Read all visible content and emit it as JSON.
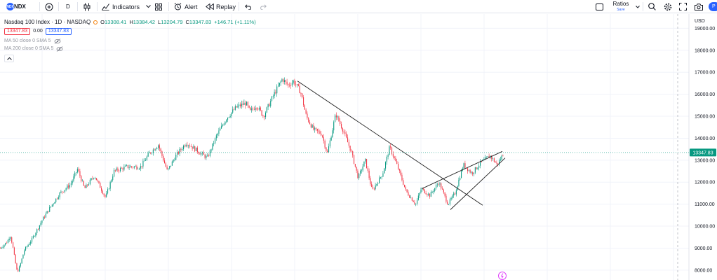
{
  "toolbar": {
    "symbol": "NDX",
    "symbol_logo_text": "NDX",
    "interval": "D",
    "indicators_label": "Indicators",
    "alert_label": "Alert",
    "replay_label": "Replay",
    "ratios_label": "Ratios",
    "ratios_sub": "Save",
    "publish_label": "P"
  },
  "legend": {
    "title": "Nasdaq 100 Index · 1D · NASDAQ",
    "open_label": "O",
    "open": "13308.41",
    "high_label": "H",
    "high": "13384.42",
    "low_label": "L",
    "low": "13204.79",
    "close_label": "C",
    "close": "13347.83",
    "change": "+146.71 (+1.11%)",
    "sell_price": "13347.83",
    "spread": "0.00",
    "buy_price": "13347.83",
    "ma50": "MA 50 close 0 SMA 5",
    "ma200": "MA 200 close 0 SMA 5"
  },
  "colors": {
    "up": "#089981",
    "down": "#f23645",
    "trendline": "#1f1f1f",
    "current_price_tag": "#089981",
    "accent": "#2962ff"
  },
  "chart_data": {
    "type": "candlestick",
    "currency_label": "USD",
    "y_ticks": [
      19000,
      18000,
      17000,
      16000,
      15000,
      14000,
      13000,
      12000,
      11000,
      10000,
      9000,
      8000
    ],
    "ylim": [
      7550,
      19650
    ],
    "current_price": 13347.83,
    "current_price_label": "13347.83",
    "bars": 400,
    "price_path": [
      {
        "bar": 0,
        "price": 9000
      },
      {
        "bar": 10,
        "price": 9300
      },
      {
        "bar": 14,
        "price": 9600
      },
      {
        "bar": 17,
        "price": 9200
      },
      {
        "bar": 21,
        "price": 8400
      },
      {
        "bar": 24,
        "price": 7900
      },
      {
        "bar": 28,
        "price": 8200
      },
      {
        "bar": 34,
        "price": 8900
      },
      {
        "bar": 45,
        "price": 9400
      },
      {
        "bar": 60,
        "price": 10300
      },
      {
        "bar": 72,
        "price": 10900
      },
      {
        "bar": 85,
        "price": 11500
      },
      {
        "bar": 100,
        "price": 11900
      },
      {
        "bar": 110,
        "price": 12600
      },
      {
        "bar": 120,
        "price": 11700
      },
      {
        "bar": 134,
        "price": 12300
      },
      {
        "bar": 150,
        "price": 11300
      },
      {
        "bar": 162,
        "price": 12500
      },
      {
        "bar": 180,
        "price": 12700
      },
      {
        "bar": 200,
        "price": 12700
      },
      {
        "bar": 212,
        "price": 13300
      },
      {
        "bar": 225,
        "price": 13700
      },
      {
        "bar": 238,
        "price": 12500
      },
      {
        "bar": 250,
        "price": 13200
      },
      {
        "bar": 265,
        "price": 13800
      },
      {
        "bar": 282,
        "price": 13400
      },
      {
        "bar": 295,
        "price": 13100
      },
      {
        "bar": 308,
        "price": 14100
      },
      {
        "bar": 322,
        "price": 14900
      },
      {
        "bar": 336,
        "price": 15400
      },
      {
        "bar": 350,
        "price": 15600
      },
      {
        "bar": 356,
        "price": 15200
      },
      {
        "bar": 365,
        "price": 15500
      },
      {
        "bar": 375,
        "price": 15000
      },
      {
        "bar": 390,
        "price": 16000
      },
      {
        "bar": 402,
        "price": 16700
      },
      {
        "bar": 410,
        "price": 16400
      },
      {
        "bar": 418,
        "price": 16600
      },
      {
        "bar": 428,
        "price": 16100
      },
      {
        "bar": 436,
        "price": 15000
      },
      {
        "bar": 446,
        "price": 14400
      },
      {
        "bar": 458,
        "price": 14200
      },
      {
        "bar": 466,
        "price": 13300
      },
      {
        "bar": 478,
        "price": 15100
      },
      {
        "bar": 488,
        "price": 14400
      },
      {
        "bar": 500,
        "price": 13400
      },
      {
        "bar": 510,
        "price": 12200
      },
      {
        "bar": 520,
        "price": 13000
      },
      {
        "bar": 530,
        "price": 11600
      },
      {
        "bar": 545,
        "price": 12400
      },
      {
        "bar": 555,
        "price": 13600
      },
      {
        "bar": 565,
        "price": 12800
      },
      {
        "bar": 578,
        "price": 11600
      },
      {
        "bar": 592,
        "price": 11000
      },
      {
        "bar": 600,
        "price": 11700
      },
      {
        "bar": 612,
        "price": 11400
      },
      {
        "bar": 625,
        "price": 12000
      },
      {
        "bar": 638,
        "price": 11000
      },
      {
        "bar": 648,
        "price": 11500
      },
      {
        "bar": 660,
        "price": 12800
      },
      {
        "bar": 672,
        "price": 12400
      },
      {
        "bar": 685,
        "price": 12900
      },
      {
        "bar": 698,
        "price": 13200
      },
      {
        "bar": 708,
        "price": 12800
      },
      {
        "bar": 718,
        "price": 13350
      }
    ],
    "trendlines": [
      {
        "name": "descending-trendline",
        "start": {
          "bar": 424,
          "price": 16600
        },
        "end": {
          "bar": 688,
          "price": 10950
        }
      },
      {
        "name": "wedge-upper-line",
        "start": {
          "bar": 601,
          "price": 11700
        },
        "end": {
          "bar": 716,
          "price": 13400
        }
      },
      {
        "name": "wedge-lower-line",
        "start": {
          "bar": 642,
          "price": 10750
        },
        "end": {
          "bar": 720,
          "price": 13100
        }
      }
    ]
  }
}
